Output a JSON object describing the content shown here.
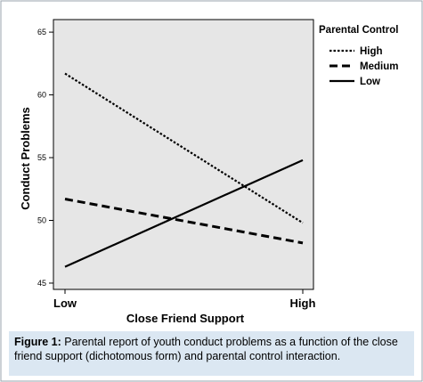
{
  "chart_data": {
    "type": "line",
    "title": "",
    "xlabel": "Close Friend Support",
    "ylabel": "Conduct Problems",
    "categories": [
      "Low",
      "High"
    ],
    "ylim": [
      44.5,
      66
    ],
    "yticks": [
      45,
      50,
      55,
      60,
      65
    ],
    "grid": false,
    "legend": {
      "title": "Parental Control",
      "placement": "right"
    },
    "series": [
      {
        "name": "High",
        "values": [
          61.7,
          49.8
        ],
        "line_style": "dotted"
      },
      {
        "name": "Medium",
        "values": [
          51.7,
          48.2
        ],
        "line_style": "dashed"
      },
      {
        "name": "Low",
        "values": [
          46.3,
          54.8
        ],
        "line_style": "solid"
      }
    ],
    "colors": {
      "plot_background": "#e6e6e6",
      "line": "#000000"
    }
  },
  "caption": {
    "label": "Figure 1:",
    "text": " Parental report of youth conduct problems as a function of the close friend support (dichotomous form) and parental control interaction."
  }
}
